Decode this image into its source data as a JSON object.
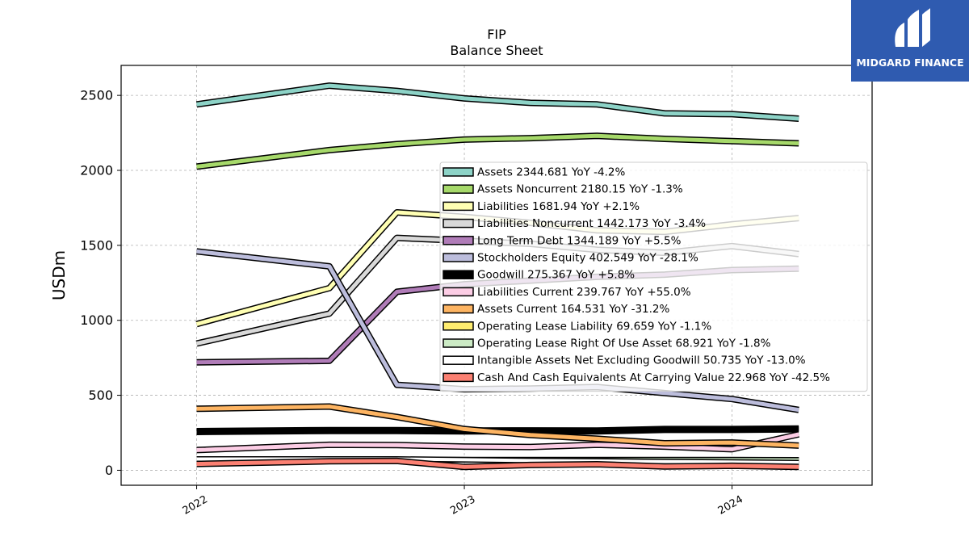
{
  "brand": {
    "name": "MIDGARD FINANCE",
    "logo_color": "#2f5bb0"
  },
  "chart_data": {
    "type": "line",
    "title": "FIP",
    "subtitle": "Balance  Sheet",
    "ylabel": "USDm",
    "xlabel": "",
    "ylim": [
      -100,
      2700
    ],
    "yticks": [
      0,
      500,
      1000,
      1500,
      2000,
      2500
    ],
    "x": [
      "2022-01-01",
      "2022-07-01",
      "2022-10-01",
      "2023-01-01",
      "2023-04-01",
      "2023-07-01",
      "2023-10-01",
      "2024-01-01",
      "2024-04-01"
    ],
    "xticks": [
      "2022",
      "2023",
      "2024"
    ],
    "grid": true,
    "legend_position": "right-center",
    "series": [
      {
        "name": "Assets",
        "legend": "Assets  2344.681 YoY -4.2%",
        "color": "#8dd3c7",
        "width": 5,
        "values": [
          2440,
          2565,
          2530,
          2480,
          2450,
          2440,
          2380,
          2375,
          2344.681
        ]
      },
      {
        "name": "Assets Noncurrent",
        "legend": "Assets Noncurrent  2180.15 YoY -1.3%",
        "color": "#a6d96a",
        "width": 5,
        "values": [
          2025,
          2135,
          2175,
          2205,
          2215,
          2230,
          2210,
          2195,
          2180.15
        ]
      },
      {
        "name": "Liabilities",
        "legend": "Liabilities  1681.94 YoY +2.1%",
        "color": "#ffffb3",
        "width": 5,
        "values": [
          975,
          1215,
          1720,
          1690,
          1650,
          1600,
          1590,
          1640,
          1681.94
        ]
      },
      {
        "name": "Liabilities Noncurrent",
        "legend": "Liabilities Noncurrent  1442.173 YoY -3.4%",
        "color": "#d9d9d9",
        "width": 5,
        "values": [
          845,
          1045,
          1550,
          1530,
          1510,
          1470,
          1450,
          1495,
          1442.173
        ]
      },
      {
        "name": "Long Term Debt",
        "legend": "Long Term Debt  1344.189 YoY +5.5%",
        "color": "#b07cb8",
        "width": 5,
        "values": [
          720,
          730,
          1190,
          1240,
          1265,
          1290,
          1305,
          1335,
          1344.189
        ]
      },
      {
        "name": "Stockholders Equity",
        "legend": "Stockholders Equity  402.549 YoY -28.1%",
        "color": "#bcbddc",
        "width": 5,
        "values": [
          1460,
          1360,
          570,
          540,
          545,
          555,
          515,
          475,
          402.549
        ]
      },
      {
        "name": "Goodwill",
        "legend": "Goodwill  275.367 YoY +5.8%",
        "color": "#000000",
        "width": 6,
        "values": [
          258,
          265,
          265,
          262,
          263,
          262,
          272,
          272,
          275.367
        ]
      },
      {
        "name": "Liabilities Current",
        "legend": "Liabilities Current  239.767 YoY +55.0%",
        "color": "#fccde5",
        "width": 5,
        "values": [
          135,
          170,
          168,
          158,
          155,
          170,
          158,
          140,
          239.767
        ]
      },
      {
        "name": "Assets Current",
        "legend": "Assets Current  164.531 YoY -31.2%",
        "color": "#fdb462",
        "width": 5,
        "values": [
          410,
          425,
          355,
          275,
          235,
          210,
          180,
          185,
          164.531
        ]
      },
      {
        "name": "Operating Lease Liability",
        "legend": "Operating Lease Liability  69.659 YoY -1.1%",
        "color": "#ffed6f",
        "width": 4,
        "values": [
          70,
          70,
          70,
          70,
          70,
          70,
          70,
          70,
          69.659
        ]
      },
      {
        "name": "Operating Lease Right Of Use Asset",
        "legend": "Operating Lease Right Of Use Asset  68.921 YoY -1.8%",
        "color": "#ccebc5",
        "width": 4,
        "values": [
          70,
          70,
          70,
          70,
          70,
          70,
          70,
          70,
          68.921
        ]
      },
      {
        "name": "Intangible Assets Net Excluding Goodwill",
        "legend": "Intangible Assets Net Excluding Goodwill  50.735 YoY -13.0%",
        "color": "#ffffff",
        "width": 4,
        "values": [
          75,
          75,
          75,
          70,
          65,
          62,
          58,
          55,
          50.735
        ]
      },
      {
        "name": "Cash And Cash Equivalents At Carrying Value",
        "legend": "Cash And Cash Equivalents At Carrying Value  22.968 YoY -42.5%",
        "color": "#fb8072",
        "width": 5,
        "values": [
          42,
          60,
          62,
          22,
          35,
          40,
          25,
          30,
          22.968
        ]
      }
    ]
  }
}
